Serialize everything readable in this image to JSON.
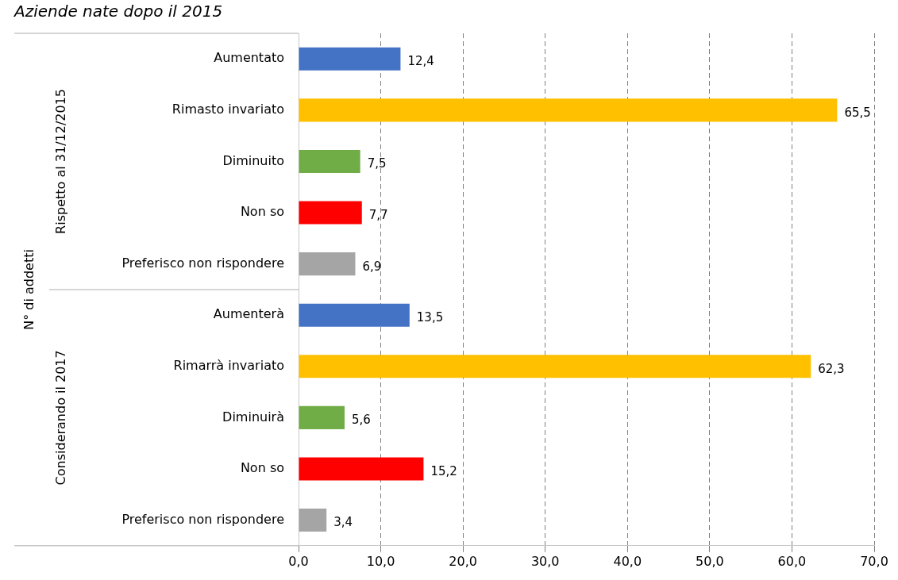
{
  "chart_data": {
    "type": "bar",
    "orientation": "horizontal",
    "title": "Aziende nate dopo il 2015",
    "annotations": [
      "N° di addetti",
      "Rispetto al 31/12/2015",
      "Considerando il 2017"
    ],
    "categories": [
      "Aumentato",
      "Rimasto invariato",
      "Diminuito",
      "Non so",
      "Preferisco non rispondere",
      "Aumenterà",
      "Rimarrà invariato",
      "Diminuirà",
      "Non so",
      "Preferisco non rispondere"
    ],
    "values": [
      12.4,
      65.5,
      7.5,
      7.7,
      6.9,
      13.5,
      62.3,
      5.6,
      15.2,
      3.4
    ],
    "value_labels": [
      "12,4",
      "65,5",
      "7,5",
      "7,7",
      "6,9",
      "13,5",
      "62,3",
      "5,6",
      "15,2",
      "3,4"
    ],
    "colors": [
      "#4472c4",
      "#ffc000",
      "#70ad47",
      "#ff0000",
      "#a5a5a5",
      "#4472c4",
      "#ffc000",
      "#70ad47",
      "#ff0000",
      "#a5a5a5"
    ],
    "xlim": [
      0,
      70
    ],
    "xticks": [
      {
        "value": 0,
        "label": "0,0"
      },
      {
        "value": 10,
        "label": "10,0"
      },
      {
        "value": 20,
        "label": "20,0"
      },
      {
        "value": 30,
        "label": "30,0"
      },
      {
        "value": 40,
        "label": "40,0"
      },
      {
        "value": 50,
        "label": "50,0"
      },
      {
        "value": 60,
        "label": "60,0"
      },
      {
        "value": 70,
        "label": "70,0"
      }
    ],
    "grid": "x",
    "legend": false
  }
}
